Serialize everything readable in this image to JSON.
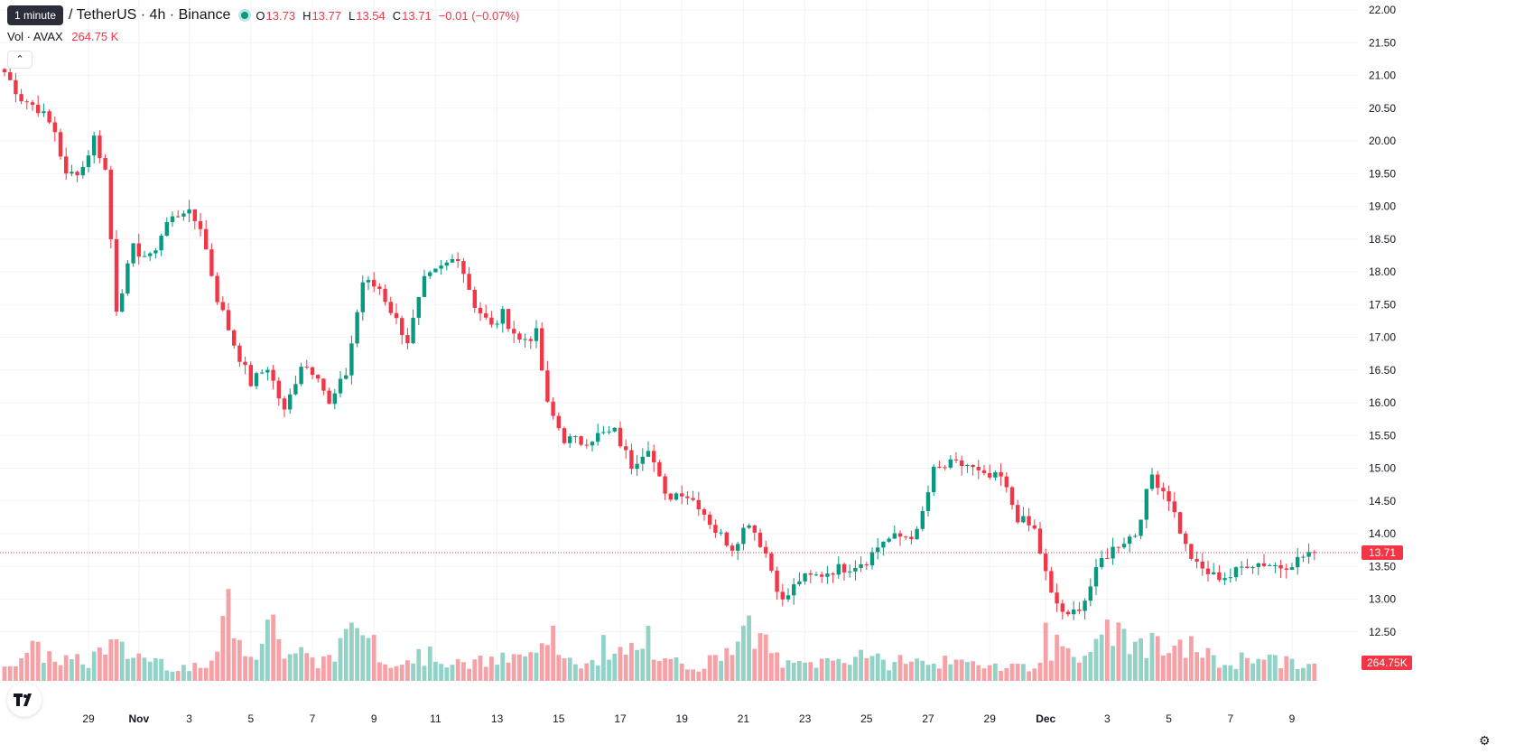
{
  "header": {
    "interval_tooltip": "1 minute",
    "symbol": "/ TetherUS · 4h · Binance",
    "o_label": "O",
    "o_value": "13.73",
    "h_label": "H",
    "h_value": "13.77",
    "l_label": "L",
    "l_value": "13.54",
    "c_label": "C",
    "c_value": "13.71",
    "change": "−0.01 (−0.07%)",
    "vol_label": "Vol · AVAX",
    "vol_value": "264.75 K",
    "collapse_icon": "chevron-up-icon",
    "logo_icon": "tradingview-logo",
    "settings_icon": "gear-icon"
  },
  "colors": {
    "up": "#089981",
    "down": "#f23645",
    "up_volume": "#93d2c7",
    "down_volume": "#f6a1a6",
    "grid": "#f0f3fa",
    "text": "#131722"
  },
  "chart_data": {
    "type": "candlestick",
    "timeframe": "4h",
    "price_axis": {
      "min": 12.0,
      "max": 22.0,
      "ticks": [
        "22.00",
        "21.50",
        "21.00",
        "20.50",
        "20.00",
        "19.50",
        "19.00",
        "18.50",
        "18.00",
        "17.50",
        "17.00",
        "16.50",
        "16.00",
        "15.50",
        "15.00",
        "14.50",
        "14.00",
        "13.50",
        "13.00",
        "12.50"
      ]
    },
    "time_axis": {
      "labels": [
        "29",
        "Nov",
        "3",
        "5",
        "7",
        "9",
        "11",
        "13",
        "15",
        "17",
        "19",
        "21",
        "23",
        "25",
        "27",
        "29",
        "Dec",
        "3",
        "5",
        "7",
        "9"
      ],
      "bold": [
        "Nov",
        "Dec"
      ],
      "label_candle_index": [
        15,
        24,
        33,
        44,
        55,
        66,
        77,
        88,
        99,
        110,
        121,
        132,
        143,
        154,
        165,
        176,
        186,
        197,
        208,
        219,
        230
      ]
    },
    "current_price": "13.71",
    "current_volume": "264.75K",
    "volume_max": 280,
    "price_path": [
      [
        0,
        21.05
      ],
      [
        3,
        20.65
      ],
      [
        6,
        20.5
      ],
      [
        9,
        20.15
      ],
      [
        11,
        19.45
      ],
      [
        14,
        19.6
      ],
      [
        16,
        20.05
      ],
      [
        18,
        19.55
      ],
      [
        20,
        17.45
      ],
      [
        23,
        18.35
      ],
      [
        26,
        18.2
      ],
      [
        29,
        18.75
      ],
      [
        32,
        18.95
      ],
      [
        35,
        18.7
      ],
      [
        38,
        17.6
      ],
      [
        41,
        16.9
      ],
      [
        44,
        16.3
      ],
      [
        47,
        16.55
      ],
      [
        50,
        15.85
      ],
      [
        53,
        16.6
      ],
      [
        56,
        16.45
      ],
      [
        58,
        15.95
      ],
      [
        61,
        16.45
      ],
      [
        64,
        17.85
      ],
      [
        67,
        17.75
      ],
      [
        70,
        17.25
      ],
      [
        72,
        16.95
      ],
      [
        75,
        17.85
      ],
      [
        78,
        18.05
      ],
      [
        81,
        18.25
      ],
      [
        84,
        17.5
      ],
      [
        87,
        17.15
      ],
      [
        89,
        17.35
      ],
      [
        92,
        16.95
      ],
      [
        95,
        17.05
      ],
      [
        97,
        15.95
      ],
      [
        100,
        15.45
      ],
      [
        103,
        15.4
      ],
      [
        106,
        15.5
      ],
      [
        109,
        15.55
      ],
      [
        112,
        15.05
      ],
      [
        115,
        15.35
      ],
      [
        118,
        14.55
      ],
      [
        121,
        14.65
      ],
      [
        124,
        14.45
      ],
      [
        127,
        14.05
      ],
      [
        130,
        13.8
      ],
      [
        133,
        14.2
      ],
      [
        136,
        13.7
      ],
      [
        139,
        12.95
      ],
      [
        142,
        13.3
      ],
      [
        145,
        13.35
      ],
      [
        148,
        13.45
      ],
      [
        151,
        13.5
      ],
      [
        154,
        13.6
      ],
      [
        157,
        13.9
      ],
      [
        160,
        13.95
      ],
      [
        163,
        14.0
      ],
      [
        166,
        14.95
      ],
      [
        169,
        15.05
      ],
      [
        172,
        15.05
      ],
      [
        175,
        14.85
      ],
      [
        178,
        14.85
      ],
      [
        181,
        14.25
      ],
      [
        184,
        14.05
      ],
      [
        187,
        13.05
      ],
      [
        190,
        12.7
      ],
      [
        193,
        13.0
      ],
      [
        196,
        13.6
      ],
      [
        199,
        13.85
      ],
      [
        202,
        14.0
      ],
      [
        205,
        14.9
      ],
      [
        208,
        14.55
      ],
      [
        211,
        13.8
      ],
      [
        213,
        13.5
      ],
      [
        216,
        13.35
      ],
      [
        219,
        13.35
      ],
      [
        222,
        13.55
      ],
      [
        225,
        13.55
      ],
      [
        228,
        13.5
      ],
      [
        231,
        13.6
      ],
      [
        233,
        13.71
      ]
    ],
    "volume_path": [
      [
        0,
        30
      ],
      [
        5,
        50
      ],
      [
        10,
        35
      ],
      [
        15,
        30
      ],
      [
        18,
        60
      ],
      [
        22,
        45
      ],
      [
        27,
        35
      ],
      [
        30,
        25
      ],
      [
        35,
        20
      ],
      [
        38,
        35
      ],
      [
        40,
        150
      ],
      [
        42,
        65
      ],
      [
        45,
        50
      ],
      [
        48,
        95
      ],
      [
        50,
        45
      ],
      [
        53,
        45
      ],
      [
        56,
        25
      ],
      [
        60,
        60
      ],
      [
        63,
        65
      ],
      [
        65,
        95
      ],
      [
        67,
        45
      ],
      [
        70,
        30
      ],
      [
        73,
        40
      ],
      [
        78,
        40
      ],
      [
        80,
        25
      ],
      [
        85,
        30
      ],
      [
        90,
        35
      ],
      [
        95,
        40
      ],
      [
        97,
        60
      ],
      [
        100,
        50
      ],
      [
        103,
        30
      ],
      [
        106,
        25
      ],
      [
        110,
        45
      ],
      [
        113,
        55
      ],
      [
        116,
        25
      ],
      [
        120,
        30
      ],
      [
        124,
        25
      ],
      [
        127,
        35
      ],
      [
        130,
        70
      ],
      [
        134,
        80
      ],
      [
        137,
        45
      ],
      [
        140,
        25
      ],
      [
        145,
        30
      ],
      [
        150,
        35
      ],
      [
        154,
        50
      ],
      [
        157,
        25
      ],
      [
        160,
        35
      ],
      [
        163,
        30
      ],
      [
        166,
        35
      ],
      [
        170,
        25
      ],
      [
        175,
        30
      ],
      [
        180,
        25
      ],
      [
        185,
        25
      ],
      [
        188,
        60
      ],
      [
        191,
        55
      ],
      [
        194,
        35
      ],
      [
        197,
        95
      ],
      [
        200,
        70
      ],
      [
        203,
        60
      ],
      [
        206,
        55
      ],
      [
        209,
        45
      ],
      [
        212,
        60
      ],
      [
        215,
        40
      ],
      [
        218,
        25
      ],
      [
        221,
        35
      ],
      [
        224,
        45
      ],
      [
        228,
        30
      ],
      [
        233,
        25
      ]
    ],
    "volume_spikes": [
      [
        40,
        150
      ],
      [
        47,
        100
      ],
      [
        62,
        95
      ],
      [
        98,
        90
      ],
      [
        107,
        75
      ],
      [
        115,
        90
      ],
      [
        132,
        90
      ],
      [
        135,
        78
      ],
      [
        186,
        95
      ],
      [
        197,
        100
      ],
      [
        200,
        85
      ]
    ]
  }
}
